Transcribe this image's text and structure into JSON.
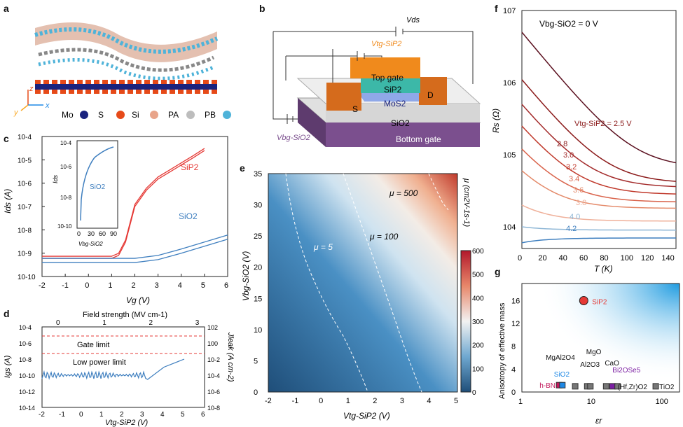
{
  "panel_labels": {
    "a": "a",
    "b": "b",
    "c": "c",
    "d": "d",
    "e": "e",
    "f": "f",
    "g": "g"
  },
  "panel_a": {
    "axis_z": "z",
    "axis_y": "y",
    "axis_x": "x",
    "legend": [
      {
        "label": "Mo",
        "color": "#1a237e"
      },
      {
        "label": "S",
        "color": "#e64a19"
      },
      {
        "label": "Si",
        "color": "#e8a48a"
      },
      {
        "label": "PA",
        "color": "#bdbdbd"
      },
      {
        "label": "PB",
        "color": "#4fb3d9"
      }
    ]
  },
  "panel_b": {
    "vds": "Vds",
    "vtg": "Vtg-SiP2",
    "vbg": "Vbg-SiO2",
    "top_gate": "Top gate",
    "sip2": "SiP2",
    "mos2": "MoS2",
    "sio2": "SiO2",
    "bottom_gate": "Bottom gate",
    "s": "S",
    "d": "D"
  },
  "panel_c": {
    "ylabel": "Ids (A)",
    "xlabel": "Vg (V)",
    "yticks": [
      "10-4",
      "10-5",
      "10-6",
      "10-7",
      "10-8",
      "10-9",
      "10-10"
    ],
    "xticks": [
      "-2",
      "-1",
      "0",
      "1",
      "2",
      "3",
      "4",
      "5",
      "6"
    ],
    "label_sip2": "SiP2",
    "label_sio2": "SiO2",
    "inset": {
      "ylabel": "Ids",
      "xlabel": "Vbg-SiO2",
      "label": "SiO2",
      "xticks": [
        "0",
        "30",
        "60",
        "90"
      ],
      "yticks": [
        "10-4",
        "10-6",
        "10-8",
        "10-10"
      ]
    }
  },
  "panel_d": {
    "ylabel_left": "Igs (A)",
    "ylabel_right": "Jleak (A cm-2)",
    "xlabel": "Vtg-SiP2 (V)",
    "top_xlabel": "Field strength (MV cm-1)",
    "yticks_left": [
      "10-4",
      "10-6",
      "10-8",
      "10-10",
      "10-12",
      "10-14"
    ],
    "yticks_right": [
      "102",
      "100",
      "10-2",
      "10-4",
      "10-6",
      "10-8"
    ],
    "xticks": [
      "-2",
      "-1",
      "0",
      "1",
      "2",
      "3",
      "4",
      "5",
      "6"
    ],
    "top_xticks": [
      "0",
      "1",
      "2",
      "3"
    ],
    "gate_limit": "Gate limit",
    "low_power_limit": "Low power limit"
  },
  "panel_e": {
    "ylabel": "Vbg-SiO2 (V)",
    "xlabel": "Vtg-SiP2 (V)",
    "colorbar_label": "μ (cm2V-1s-1)",
    "xticks": [
      "-2",
      "-1",
      "0",
      "1",
      "2",
      "3",
      "4",
      "5"
    ],
    "yticks": [
      "0",
      "5",
      "10",
      "15",
      "20",
      "25",
      "30",
      "35"
    ],
    "cbticks": [
      "0",
      "100",
      "200",
      "300",
      "400",
      "500",
      "600"
    ],
    "contours": [
      "μ = 5",
      "μ = 100",
      "μ = 500"
    ]
  },
  "panel_f": {
    "ylabel": "Rs (Ω)",
    "xlabel": "T (K)",
    "header": "Vbg-SiO2 = 0 V",
    "vtg_label": "Vtg-SiP2 = 2.5 V",
    "xticks": [
      "0",
      "20",
      "40",
      "60",
      "80",
      "100",
      "120",
      "140"
    ],
    "yticks": [
      "107",
      "106",
      "105",
      "104"
    ],
    "curve_labels": [
      "2.8",
      "3.0",
      "3.2",
      "3.4",
      "3.6",
      "3.8",
      "4.0",
      "4.2"
    ]
  },
  "panel_g": {
    "ylabel": "Anisotropy of effective mass",
    "xlabel": "εr",
    "yticks": [
      "0",
      "4",
      "8",
      "12",
      "16"
    ],
    "xticks": [
      "1",
      "10",
      "100"
    ],
    "points": [
      "SiP2",
      "h-BN",
      "SiO2",
      "MgAl2O4",
      "Al2O3",
      "MgO",
      "CaO",
      "Bi2OSe5",
      "(Hf,Zr)O2",
      "TiO2"
    ]
  },
  "chart_data": [
    {
      "type": "line",
      "panel": "c",
      "xlabel": "Vg (V)",
      "ylabel": "Ids (A)",
      "xlim": [
        -2,
        6
      ],
      "ylim": [
        "1e-10",
        "1e-4"
      ],
      "yscale": "log",
      "series": [
        {
          "name": "SiP2",
          "x": [
            -2,
            0,
            1,
            1.3,
            1.6,
            2,
            2.5,
            3,
            3.5,
            4,
            4.5,
            5
          ],
          "values": [
            "6e-10",
            "6e-10",
            "6e-10",
            "8e-10",
            "3e-9",
            "1e-7",
            "5e-7",
            "1.5e-6",
            "3e-6",
            "6e-6",
            "1.2e-5",
            "2.5e-5"
          ]
        },
        {
          "name": "SiO2",
          "x": [
            -2,
            0,
            1,
            2,
            3,
            4,
            5,
            6
          ],
          "values": [
            "6e-10",
            "6e-10",
            "6e-10",
            "6e-10",
            "8e-10",
            "1.5e-9",
            "3e-9",
            "6e-9"
          ]
        }
      ]
    },
    {
      "type": "line",
      "panel": "d",
      "xlabel": "Vtg-SiP2 (V)",
      "ylabel": "Igs (A)",
      "xlim": [
        -2,
        6
      ],
      "ylim": [
        "1e-14",
        "1e-4"
      ],
      "yscale": "log",
      "series": [
        {
          "name": "Igs",
          "x": [
            -2,
            -1,
            0,
            1,
            2,
            3,
            3.2,
            4,
            5
          ],
          "values": [
            "1e-10",
            "1.5e-10",
            "1e-10",
            "1e-10",
            "1e-10",
            "1e-10",
            "3e-11",
            "1e-9",
            "1e-8"
          ]
        }
      ]
    },
    {
      "type": "heatmap",
      "panel": "e",
      "xlabel": "Vtg-SiP2 (V)",
      "ylabel": "Vbg-SiO2 (V)",
      "xlim": [
        -2,
        5
      ],
      "ylim": [
        0,
        35
      ],
      "colorbar_range": [
        0,
        600
      ]
    },
    {
      "type": "line",
      "panel": "f",
      "xlabel": "T (K)",
      "ylabel": "Rs (Ω)",
      "xlim": [
        0,
        150
      ],
      "ylim": [
        "5e3",
        "1e7"
      ],
      "yscale": "log",
      "series": [
        {
          "name": "2.5",
          "values_at_0K": "5e6",
          "values_at_150K": "6.5e4"
        },
        {
          "name": "2.8",
          "values_at_0K": "1.1e6",
          "values_at_150K": "4e4"
        },
        {
          "name": "3.0",
          "values_at_0K": "5e5",
          "values_at_150K": "3.5e4"
        },
        {
          "name": "3.2",
          "values_at_0K": "2.5e5",
          "values_at_150K": "2.8e4"
        },
        {
          "name": "3.4",
          "values_at_0K": "1.2e5",
          "values_at_150K": "2.2e4"
        },
        {
          "name": "3.6",
          "values_at_0K": "6e4",
          "values_at_150K": "1.8e4"
        },
        {
          "name": "3.8",
          "values_at_0K": "2e4",
          "values_at_150K": "1.2e4"
        },
        {
          "name": "4.0",
          "values_at_0K": "1e4",
          "values_at_150K": "9e3"
        },
        {
          "name": "4.2",
          "values_at_0K": "6e3",
          "values_at_150K": "7e3"
        }
      ]
    },
    {
      "type": "scatter",
      "panel": "g",
      "xlabel": "εr",
      "ylabel": "Anisotropy of effective mass",
      "xlim": [
        1,
        200
      ],
      "ylim": [
        0,
        19
      ],
      "xscale": "log",
      "points": [
        {
          "name": "SiP2",
          "x": 8,
          "y": 16,
          "color": "#e53935"
        },
        {
          "name": "h-BN",
          "x": 3.5,
          "y": 1.2,
          "color": "#c2185b"
        },
        {
          "name": "SiO2",
          "x": 3.9,
          "y": 1.2,
          "color": "#1e88e5"
        },
        {
          "name": "MgAl2O4",
          "x": 6,
          "y": 1.0,
          "color": "#777777"
        },
        {
          "name": "Al2O3",
          "x": 9,
          "y": 1.0,
          "color": "#777777"
        },
        {
          "name": "MgO",
          "x": 10,
          "y": 1.0,
          "color": "#777777"
        },
        {
          "name": "CaO",
          "x": 17,
          "y": 1.0,
          "color": "#777777"
        },
        {
          "name": "Bi2OSe5",
          "x": 21,
          "y": 1.0,
          "color": "#7b1fa2"
        },
        {
          "name": "(Hf,Zr)O2",
          "x": 25,
          "y": 1.0,
          "color": "#777777"
        },
        {
          "name": "TiO2",
          "x": 90,
          "y": 1.0,
          "color": "#777777"
        }
      ]
    }
  ]
}
